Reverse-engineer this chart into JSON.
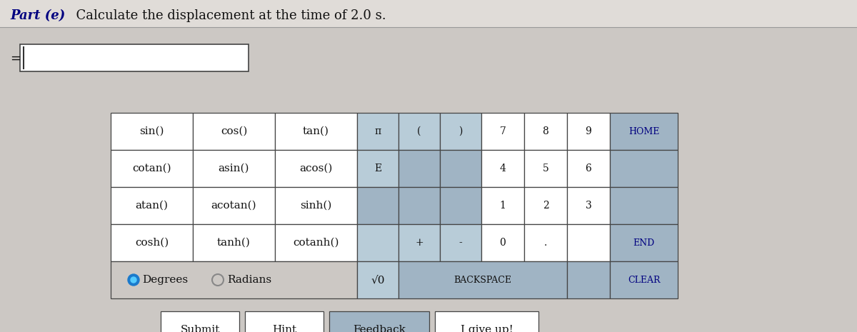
{
  "bg_color": "#ccc8c4",
  "title_bg": "#e0dcd8",
  "white": "#ffffff",
  "light_blue_cell": "#b8ccd8",
  "medium_blue_cell": "#a0b4c4",
  "dark_navy": "#000080",
  "border_color": "#444444",
  "title_part": "Part (e)",
  "title_rest": "  Calculate the displacement at the time of 2.0 s.",
  "degrees_label": "Degrees",
  "radians_label": "Radians",
  "row0": [
    "sin()",
    "cos()",
    "tan()",
    "π",
    "(",
    ")",
    "7",
    "8",
    "9",
    "HOME"
  ],
  "row1": [
    "cotan()",
    "asin()",
    "acos()",
    "E",
    "",
    "",
    "4",
    "5",
    "6",
    ""
  ],
  "row2": [
    "atan()",
    "acotan()",
    "sinh()",
    "",
    "",
    "",
    "1",
    "2",
    "3",
    ""
  ],
  "row3": [
    "cosh()",
    "tanh()",
    "cotanh()",
    "",
    "+",
    "-",
    "0",
    ".",
    "",
    "END"
  ],
  "submit_labels": [
    "Submit",
    "Hint",
    "Feedback",
    "I give up!"
  ],
  "sqrt_label": "√0",
  "backspace_label": "BACKSPACE",
  "clear_label": "CLEAR"
}
